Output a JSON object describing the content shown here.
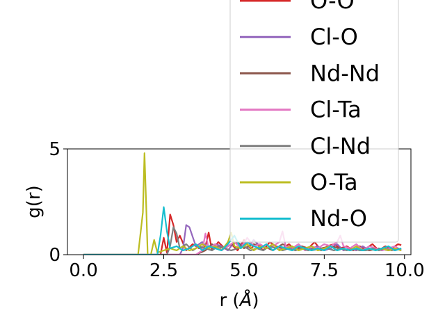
{
  "chart_data": {
    "type": "line",
    "title": "",
    "xlabel": "r (",
    "xlabel_unit": "Å",
    "xlabel_close": ")",
    "ylabel": "g(r)",
    "xlim": [
      -0.5,
      10.2
    ],
    "ylim": [
      0,
      5
    ],
    "xticks": [
      "0.0",
      "2.5",
      "5.0",
      "7.5",
      "10.0"
    ],
    "xtick_values": [
      0,
      2.5,
      5,
      7.5,
      10
    ],
    "yticks": [
      "0",
      "5"
    ],
    "ytick_values": [
      0,
      5
    ],
    "grid": false,
    "legend_placement": "top-right",
    "series": [
      {
        "name": "O-O",
        "color": "#d62728",
        "x": [
          0,
          0.5,
          1,
          1.5,
          2,
          2.4,
          2.5,
          2.6,
          2.7,
          2.8,
          2.9,
          3.0,
          3.2,
          3.4,
          3.6,
          3.8,
          3.9,
          4.0,
          4.2,
          4.4,
          4.6,
          4.8,
          5.0,
          5.2,
          5.4,
          5.6,
          5.8,
          6.0,
          6.2,
          6.4,
          6.6,
          6.8,
          7.0,
          7.2,
          7.4,
          7.6,
          7.8,
          8.0,
          8.2,
          8.4,
          8.6,
          8.8,
          9.0,
          9.2,
          9.4,
          9.6,
          9.8,
          9.9
        ],
        "y": [
          0,
          0,
          0,
          0,
          0,
          0,
          0.8,
          0.1,
          1.9,
          1.4,
          0.6,
          0.9,
          0.2,
          0.5,
          0.3,
          0.4,
          1.05,
          0.2,
          0.6,
          0.3,
          0.5,
          0.2,
          0.7,
          0.3,
          0.5,
          0.2,
          0.6,
          0.4,
          0.3,
          0.5,
          0.2,
          0.4,
          0.3,
          0.6,
          0.2,
          0.4,
          0.5,
          0.3,
          0.4,
          0.2,
          0.4,
          0.3,
          0.5,
          0.2,
          0.4,
          0.3,
          0.5,
          0.45
        ]
      },
      {
        "name": "Cl-O",
        "color": "#9467bd",
        "x": [
          0,
          1,
          2,
          2.8,
          3.0,
          3.1,
          3.2,
          3.3,
          3.5,
          3.7,
          3.9,
          4.1,
          4.3,
          4.5,
          4.7,
          4.9,
          5.1,
          5.3,
          5.5,
          5.7,
          5.9,
          6.1,
          6.3,
          6.5,
          6.7,
          6.9,
          7.1,
          7.3,
          7.5,
          7.7,
          7.9,
          8.1,
          8.3,
          8.5,
          8.7,
          8.9,
          9.1,
          9.3,
          9.5,
          9.7,
          9.9
        ],
        "y": [
          0,
          0,
          0,
          0,
          0,
          0.3,
          1.4,
          1.3,
          0.4,
          0.6,
          0.3,
          0.5,
          0.4,
          0.2,
          0.6,
          0.5,
          0.3,
          0.7,
          0.4,
          0.3,
          0.5,
          0.2,
          0.4,
          0.3,
          0.5,
          0.2,
          0.3,
          0.4,
          0.2,
          0.3,
          0.5,
          0.2,
          0.3,
          0.2,
          0.4,
          0.2,
          0.3,
          0.2,
          0.3,
          0.2,
          0.3
        ]
      },
      {
        "name": "Nd-Nd",
        "color": "#8c564b",
        "x": [
          0,
          1,
          2,
          3,
          3.5,
          3.8,
          4.0,
          4.2,
          4.5,
          4.8,
          5.0,
          5.3,
          5.6,
          5.9,
          6.2,
          6.5,
          6.8,
          7.1,
          7.4,
          7.7,
          8.0,
          8.3,
          8.6,
          8.9,
          9.2,
          9.5,
          9.8,
          9.9
        ],
        "y": [
          0,
          0,
          0,
          0,
          0,
          0.2,
          0.5,
          0.3,
          0.4,
          0.6,
          0.3,
          0.5,
          0.4,
          0.2,
          0.5,
          0.3,
          0.4,
          0.2,
          0.3,
          0.4,
          0.3,
          0.2,
          0.3,
          0.2,
          0.3,
          0.2,
          0.3,
          0.2
        ]
      },
      {
        "name": "Cl-Ta",
        "color": "#e377c2",
        "x": [
          0,
          1,
          2,
          3,
          3.5,
          3.7,
          3.8,
          3.9,
          4.1,
          4.3,
          4.5,
          4.7,
          4.9,
          5.1,
          5.3,
          5.5,
          5.7,
          5.9,
          6.1,
          6.2,
          6.3,
          6.5,
          6.7,
          6.9,
          7.1,
          7.3,
          7.5,
          7.7,
          7.9,
          8.0,
          8.1,
          8.3,
          8.5,
          8.7,
          8.9,
          9.1,
          9.3,
          9.5,
          9.7,
          9.9
        ],
        "y": [
          0,
          0,
          0,
          0,
          0,
          0.2,
          1.0,
          0.3,
          0.5,
          0.2,
          0.4,
          0.6,
          0.3,
          0.8,
          0.4,
          0.5,
          0.3,
          0.4,
          0.6,
          1.1,
          0.4,
          0.3,
          0.5,
          0.2,
          0.4,
          0.3,
          0.5,
          0.4,
          0.6,
          0.9,
          0.4,
          0.3,
          0.5,
          0.2,
          0.4,
          0.3,
          0.2,
          0.3,
          0.4,
          0.2
        ]
      },
      {
        "name": "Cl-Nd",
        "color": "#7f7f7f",
        "x": [
          0,
          1,
          2,
          2.6,
          2.7,
          2.8,
          2.9,
          3.0,
          3.2,
          3.4,
          3.6,
          3.8,
          4.0,
          4.2,
          4.4,
          4.6,
          4.8,
          5.0,
          5.2,
          5.4,
          5.6,
          5.8,
          6.0,
          6.2,
          6.4,
          6.6,
          6.8,
          7.0,
          7.2,
          7.4,
          7.6,
          7.8,
          8.0,
          8.2,
          8.4,
          8.6,
          8.8,
          9.0,
          9.2,
          9.4,
          9.6,
          9.8,
          9.9
        ],
        "y": [
          0,
          0,
          0,
          0,
          0.4,
          1.3,
          1.0,
          0.3,
          0.5,
          0.2,
          0.4,
          0.3,
          0.2,
          0.4,
          0.3,
          0.2,
          0.3,
          0.4,
          0.2,
          0.3,
          0.2,
          0.4,
          0.3,
          0.2,
          0.3,
          0.2,
          0.3,
          0.2,
          0.3,
          0.2,
          0.3,
          0.2,
          0.3,
          0.2,
          0.3,
          0.2,
          0.2,
          0.3,
          0.2,
          0.3,
          0.2,
          0.3,
          0.2
        ]
      },
      {
        "name": "O-Ta",
        "color": "#bcbd22",
        "x": [
          0,
          1,
          1.7,
          1.85,
          1.9,
          1.95,
          2.0,
          2.1,
          2.2,
          2.3,
          2.5,
          2.7,
          2.9,
          3.1,
          3.3,
          3.5,
          3.7,
          3.9,
          4.1,
          4.3,
          4.5,
          4.6,
          4.7,
          4.9,
          5.1,
          5.3,
          5.5,
          5.7,
          5.9,
          6.1,
          6.3,
          6.5,
          6.7,
          6.9,
          7.1,
          7.3,
          7.5,
          7.7,
          7.9,
          8.1,
          8.3,
          8.5,
          8.7,
          8.9,
          9.1,
          9.3,
          9.5,
          9.7,
          9.9
        ],
        "y": [
          0,
          0,
          0,
          2.0,
          4.8,
          2.5,
          0,
          0,
          0.7,
          0.1,
          0.2,
          0.3,
          0.2,
          0.4,
          0.2,
          0.3,
          0.5,
          0.3,
          0.4,
          0.2,
          0.6,
          1.05,
          0.4,
          0.3,
          0.5,
          0.2,
          0.4,
          0.3,
          0.5,
          0.2,
          0.3,
          0.4,
          0.2,
          0.3,
          0.4,
          0.2,
          0.3,
          0.4,
          0.2,
          0.3,
          0.2,
          0.4,
          0.2,
          0.3,
          0.2,
          0.3,
          0.2,
          0.3,
          0.2
        ]
      },
      {
        "name": "Nd-O",
        "color": "#17becf",
        "x": [
          0,
          1,
          2,
          2.3,
          2.4,
          2.5,
          2.6,
          2.7,
          2.9,
          3.1,
          3.3,
          3.5,
          3.7,
          3.9,
          4.1,
          4.3,
          4.5,
          4.7,
          4.9,
          5.1,
          5.3,
          5.5,
          5.7,
          5.9,
          6.1,
          6.3,
          6.5,
          6.7,
          6.9,
          7.1,
          7.3,
          7.5,
          7.7,
          7.9,
          8.1,
          8.3,
          8.5,
          8.7,
          8.9,
          9.1,
          9.3,
          9.5,
          9.7,
          9.9
        ],
        "y": [
          0,
          0,
          0,
          0,
          0.9,
          2.25,
          1.1,
          0.3,
          0.4,
          0.2,
          0.3,
          0.5,
          0.2,
          0.4,
          0.3,
          0.2,
          0.5,
          0.9,
          0.3,
          0.6,
          0.4,
          0.3,
          0.5,
          0.2,
          0.4,
          0.3,
          0.2,
          0.4,
          0.3,
          0.2,
          0.3,
          0.2,
          0.4,
          0.2,
          0.3,
          0.2,
          0.3,
          0.2,
          0.3,
          0.2,
          0.3,
          0.4,
          0.2,
          0.3
        ]
      }
    ]
  },
  "colors": {
    "axis": "#000000",
    "background": "#ffffff",
    "legend_border": "#cccccc"
  }
}
